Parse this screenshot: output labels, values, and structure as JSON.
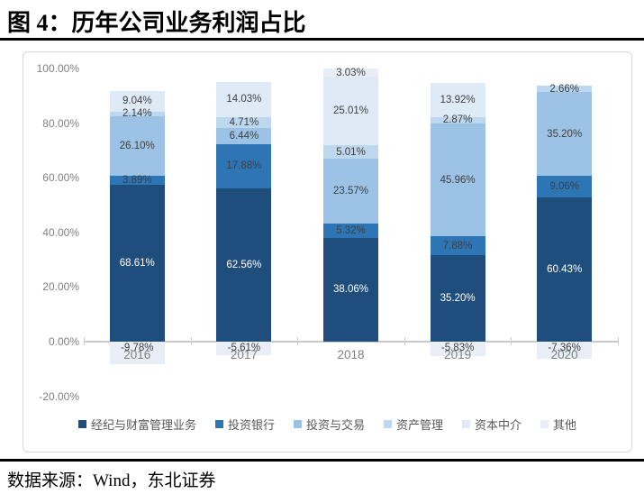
{
  "title": "图 4：历年公司业务利润占比",
  "source_note": "数据来源：Wind，东北证券",
  "chart_data": {
    "type": "bar",
    "stacked": true,
    "normalized": "percent-of-abs-sum-per-category",
    "title": "图 4：历年公司业务利润占比",
    "xlabel": "",
    "ylabel": "",
    "categories": [
      "2016",
      "2017",
      "2018",
      "2019",
      "2020"
    ],
    "series": [
      {
        "name": "经纪与财富管理业务",
        "color": "#1F4E7C",
        "label_color": "#FFFFFF",
        "values": [
          68.61,
          62.56,
          38.06,
          35.2,
          60.43
        ]
      },
      {
        "name": "投资银行",
        "color": "#2E75B6",
        "label_color": "#3F3F3F",
        "values": [
          3.89,
          17.88,
          5.32,
          7.88,
          9.06
        ]
      },
      {
        "name": "投资与交易",
        "color": "#9CC3E6",
        "label_color": "#3F3F3F",
        "values": [
          26.1,
          6.44,
          23.57,
          45.96,
          35.2
        ]
      },
      {
        "name": "资产管理",
        "color": "#BDD7EE",
        "label_color": "#3F3F3F",
        "values": [
          2.14,
          4.71,
          5.01,
          2.87,
          2.66
        ]
      },
      {
        "name": "资本中介",
        "color": "#DEEBF7",
        "label_color": "#3F3F3F",
        "values": [
          9.04,
          14.03,
          25.01,
          13.92,
          0
        ]
      },
      {
        "name": "其他",
        "color": "#E9EEF6",
        "label_color": "#3F3F3F",
        "values": [
          -9.78,
          -5.61,
          3.03,
          -5.83,
          -7.36
        ]
      }
    ],
    "y_ticks": [
      "100.00%",
      "80.00%",
      "60.00%",
      "40.00%",
      "20.00%",
      "0.00%",
      "-20.00%"
    ],
    "ylim": [
      -20,
      100
    ],
    "grid": false,
    "legend_position": "bottom",
    "axis_color": "#C9C9C9",
    "tick_label_color": "#7F7F7F"
  }
}
